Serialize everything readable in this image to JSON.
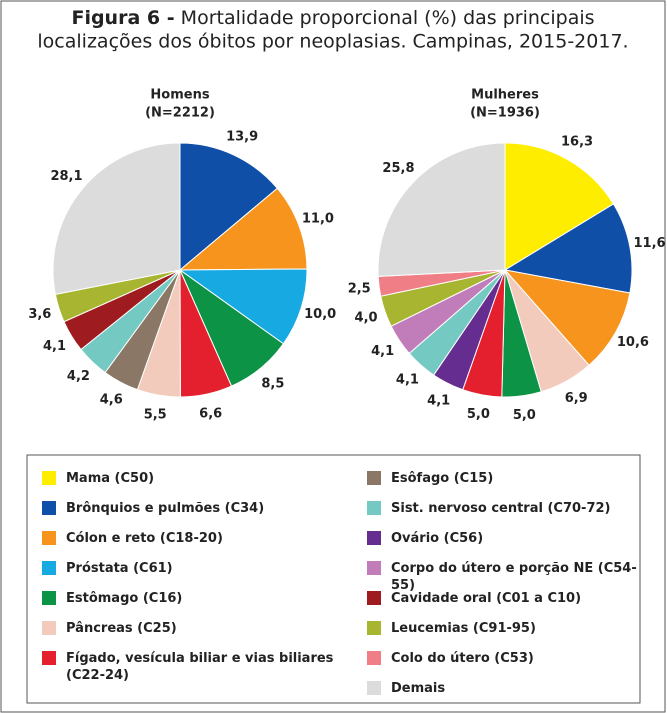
{
  "figure": {
    "label": "Figura 6 -",
    "caption_line1": "Mortalidade proporcional (%) das principais",
    "caption_line2": "localizações dos óbitos por neoplasias. Campinas, 2015-2017."
  },
  "chart_data": [
    {
      "type": "pie",
      "title": "Homens",
      "subtitle": "(N=2212)",
      "values": [
        13.9,
        11.0,
        10.0,
        8.5,
        6.6,
        5.5,
        4.6,
        4.2,
        4.1,
        3.6,
        28.1
      ],
      "value_labels": [
        "13,9",
        "11,0",
        "10,0",
        "8,5",
        "6,6",
        "5,5",
        "4,6",
        "4,2",
        "4,1",
        "3,6",
        "28,1"
      ],
      "colors": [
        "#0f4fa8",
        "#f7941d",
        "#17a9e1",
        "#0d9345",
        "#e5202e",
        "#f2cbbd",
        "#8a7765",
        "#74c9c3",
        "#9e1b20",
        "#a8b531",
        "#dcdcdc"
      ]
    },
    {
      "type": "pie",
      "title": "Mulheres",
      "subtitle": "(N=1936)",
      "values": [
        16.3,
        11.6,
        10.6,
        6.9,
        5.0,
        5.0,
        4.1,
        4.1,
        4.1,
        4.0,
        2.5,
        25.8
      ],
      "value_labels": [
        "16,3",
        "11,6",
        "10,6",
        "6,9",
        "5,0",
        "5,0",
        "4,1",
        "4,1",
        "4,1",
        "4,0",
        "2,5",
        "25,8"
      ],
      "colors": [
        "#ffed00",
        "#0f4fa8",
        "#f7941d",
        "#f2cbbd",
        "#0d9345",
        "#e5202e",
        "#662d91",
        "#74c9c3",
        "#c17dba",
        "#a8b531",
        "#f07e86",
        "#dcdcdc"
      ]
    }
  ],
  "legend": [
    {
      "name": "Mama (C50)",
      "color": "#ffed00"
    },
    {
      "name": "Brônquios e pulmões (C34)",
      "color": "#0f4fa8"
    },
    {
      "name": "Cólon e reto (C18-20)",
      "color": "#f7941d"
    },
    {
      "name": "Próstata (C61)",
      "color": "#17a9e1"
    },
    {
      "name": "Estômago (C16)",
      "color": "#0d9345"
    },
    {
      "name": "Pâncreas (C25)",
      "color": "#f2cbbd"
    },
    {
      "name": "Fígado, vesícula biliar e vias biliares (C22-24)",
      "color": "#e5202e"
    },
    {
      "name": "Esôfago (C15)",
      "color": "#8a7765"
    },
    {
      "name": "Sist. nervoso central (C70-72)",
      "color": "#74c9c3"
    },
    {
      "name": "Ovário (C56)",
      "color": "#662d91"
    },
    {
      "name": "Corpo do útero e porção NE (C54-55)",
      "color": "#c17dba"
    },
    {
      "name": "Cavidade oral (C01 a C10)",
      "color": "#9e1b20"
    },
    {
      "name": "Leucemias (C91-95)",
      "color": "#a8b531"
    },
    {
      "name": "Colo do útero (C53)",
      "color": "#f07e86"
    },
    {
      "name": "Demais",
      "color": "#dcdcdc"
    }
  ]
}
